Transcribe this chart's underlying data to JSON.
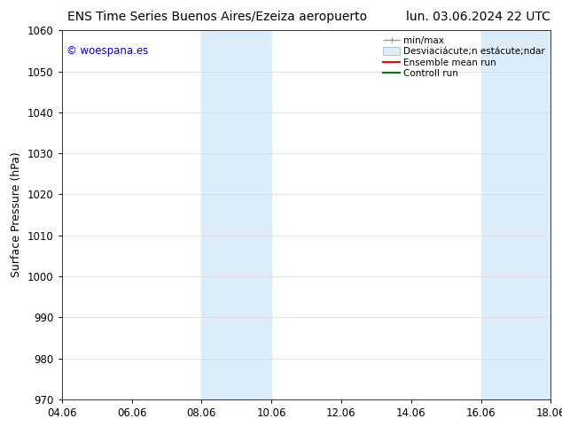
{
  "title_left": "ENS Time Series Buenos Aires/Ezeiza aeropuerto",
  "title_right": "lun. 03.06.2024 22 UTC",
  "ylabel": "Surface Pressure (hPa)",
  "xlabel_ticks": [
    "04.06",
    "06.06",
    "08.06",
    "10.06",
    "12.06",
    "14.06",
    "16.06",
    "18.06"
  ],
  "x_tick_positions": [
    0,
    2,
    4,
    6,
    8,
    10,
    12,
    14
  ],
  "xlim": [
    0,
    14
  ],
  "ylim": [
    970,
    1060
  ],
  "yticks": [
    970,
    980,
    990,
    1000,
    1010,
    1020,
    1030,
    1040,
    1050,
    1060
  ],
  "shaded_regions": [
    {
      "xmin": 4,
      "xmax": 6,
      "color": "#dbedf9"
    },
    {
      "xmin": 12,
      "xmax": 14,
      "color": "#dbedf9"
    }
  ],
  "watermark": "© woespana.es",
  "watermark_color": "#0000cc",
  "legend_label_minmax": "min/max",
  "legend_label_std": "Desviaciácute;n estácute;ndar",
  "legend_label_ens": "Ensemble mean run",
  "legend_label_ctrl": "Controll run",
  "legend_color_minmax": "#999999",
  "legend_color_std": "#dbedf9",
  "legend_color_ens": "red",
  "legend_color_ctrl": "green",
  "bg_color": "#ffffff",
  "grid_color": "#dddddd",
  "title_fontsize": 10,
  "tick_fontsize": 8.5,
  "ylabel_fontsize": 9,
  "legend_fontsize": 7.5
}
